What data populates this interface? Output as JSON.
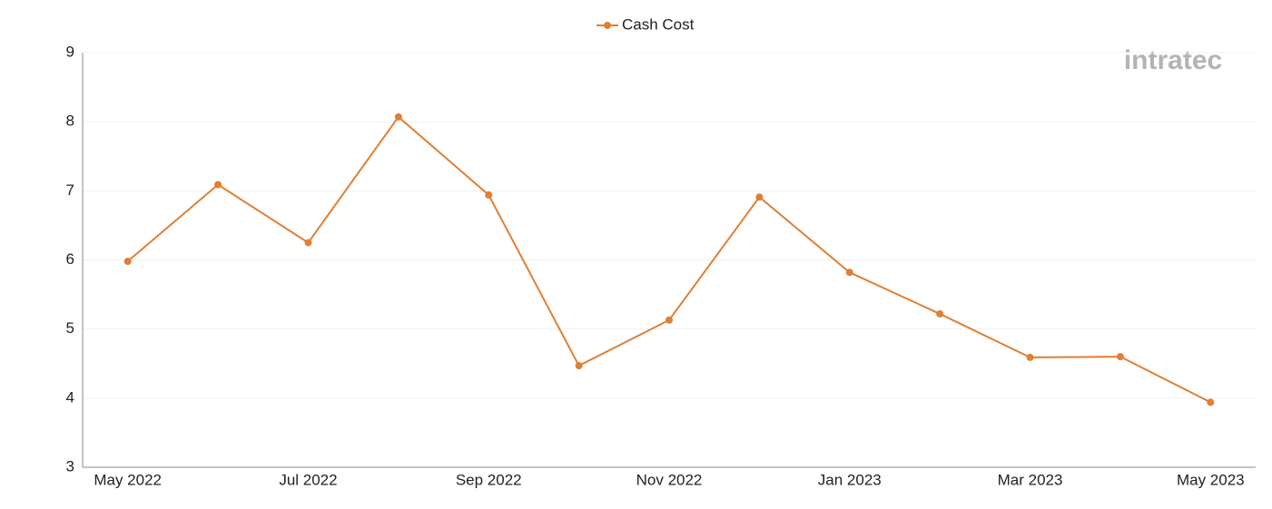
{
  "chart_data": {
    "type": "line",
    "watermark": "intratec",
    "categories": [
      "May 2022",
      null,
      "Jul 2022",
      null,
      "Sep 2022",
      null,
      "Nov 2022",
      null,
      "Jan 2023",
      null,
      "Mar 2023",
      null,
      "May 2023"
    ],
    "series": [
      {
        "name": "Cash Cost",
        "color": "#e07f35",
        "values": [
          5.98,
          7.09,
          6.25,
          8.07,
          6.94,
          4.47,
          5.13,
          6.91,
          5.82,
          5.22,
          4.59,
          4.6,
          3.94
        ]
      }
    ],
    "ylim": [
      3,
      9
    ],
    "yticks": [
      3,
      4,
      5,
      6,
      7,
      8,
      9
    ],
    "grid": true,
    "legend": "top"
  }
}
